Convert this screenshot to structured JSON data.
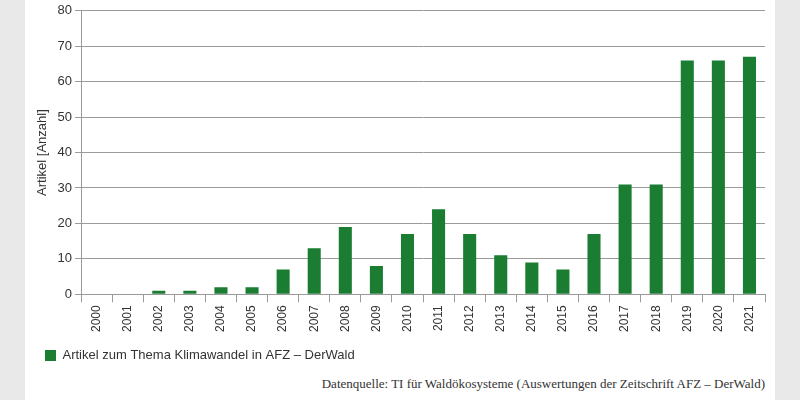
{
  "chart_data": {
    "type": "bar",
    "y_label": "Artikel [Anzahl]",
    "source": "Datenquelle: TI für Waldökosysteme (Auswertungen der Zeitschrift AFZ – DerWald)",
    "categories": [
      "2000",
      "2001",
      "2002",
      "2003",
      "2004",
      "2005",
      "2006",
      "2007",
      "2008",
      "2009",
      "2010",
      "2011",
      "2012",
      "2013",
      "2014",
      "2015",
      "2016",
      "2017",
      "2018",
      "2019",
      "2020",
      "2021"
    ],
    "series": [
      {
        "name": "Artikel zum Thema Klimawandel in AFZ – DerWald",
        "color": "#1a7d32",
        "values": [
          0,
          0,
          1,
          1,
          2,
          2,
          7,
          13,
          19,
          8,
          17,
          24,
          17,
          11,
          9,
          7,
          17,
          31,
          31,
          66,
          66,
          67
        ]
      }
    ],
    "ylim": [
      0,
      80
    ],
    "yticks": [
      0,
      10,
      20,
      30,
      40,
      50,
      60,
      70,
      80
    ],
    "grid": true,
    "legend": "bottom-left"
  }
}
